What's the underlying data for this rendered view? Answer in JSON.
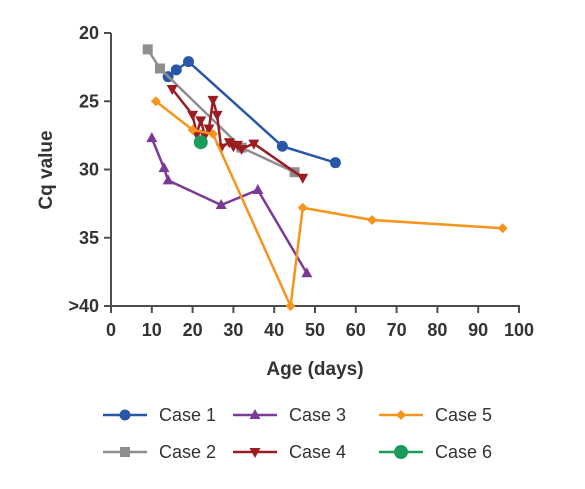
{
  "chart_data": {
    "type": "line",
    "xlabel": "Age (days)",
    "ylabel": "Cq value",
    "xlim": [
      0,
      100
    ],
    "ylim": [
      20,
      40
    ],
    "y_reversed": true,
    "x_ticks": [
      0,
      10,
      20,
      30,
      40,
      50,
      60,
      70,
      80,
      90,
      100
    ],
    "y_ticks": [
      {
        "value": 20,
        "label": "20"
      },
      {
        "value": 25,
        "label": "25"
      },
      {
        "value": 30,
        "label": "30"
      },
      {
        "value": 35,
        "label": "35"
      },
      {
        "value": 40,
        "label": ">40"
      }
    ],
    "grid": false,
    "legend_position": "bottom",
    "series": [
      {
        "name": "Case 1",
        "color": "#2a57a5",
        "marker": "circle",
        "points": [
          [
            14,
            23.2
          ],
          [
            16,
            22.7
          ],
          [
            19,
            22.1
          ],
          [
            42,
            28.3
          ],
          [
            55,
            29.5
          ]
        ]
      },
      {
        "name": "Case 2",
        "color": "#8e8e8e",
        "marker": "square",
        "points": [
          [
            9,
            21.2
          ],
          [
            12,
            22.6
          ],
          [
            32,
            28.4
          ],
          [
            45,
            30.2
          ]
        ]
      },
      {
        "name": "Case 3",
        "color": "#7b3a96",
        "marker": "triangle-up",
        "points": [
          [
            10,
            27.7
          ],
          [
            13,
            29.9
          ],
          [
            14,
            30.8
          ],
          [
            27,
            32.6
          ],
          [
            36,
            31.5
          ],
          [
            48,
            37.6
          ]
        ]
      },
      {
        "name": "Case 4",
        "color": "#9b1c22",
        "marker": "triangle-down",
        "points": [
          [
            15,
            24.1
          ],
          [
            20,
            26.0
          ],
          [
            21,
            27.4
          ],
          [
            22,
            26.4
          ],
          [
            23,
            27.5
          ],
          [
            24,
            27.0
          ],
          [
            25,
            24.9
          ],
          [
            26,
            26.0
          ],
          [
            27,
            28.4
          ],
          [
            29,
            28.0
          ],
          [
            30,
            28.3
          ],
          [
            31,
            28.2
          ],
          [
            32,
            28.5
          ],
          [
            35,
            28.1
          ],
          [
            47,
            30.6
          ]
        ]
      },
      {
        "name": "Case 5",
        "color": "#f7941d",
        "marker": "diamond",
        "points": [
          [
            11,
            25.0
          ],
          [
            20,
            27.1
          ],
          [
            25,
            27.4
          ],
          [
            44,
            40.0
          ],
          [
            47,
            32.8
          ],
          [
            64,
            33.7
          ],
          [
            96,
            34.3
          ]
        ]
      },
      {
        "name": "Case 6",
        "color": "#1a9d5a",
        "marker": "circle",
        "points": [
          [
            22,
            28.0
          ]
        ]
      }
    ]
  }
}
